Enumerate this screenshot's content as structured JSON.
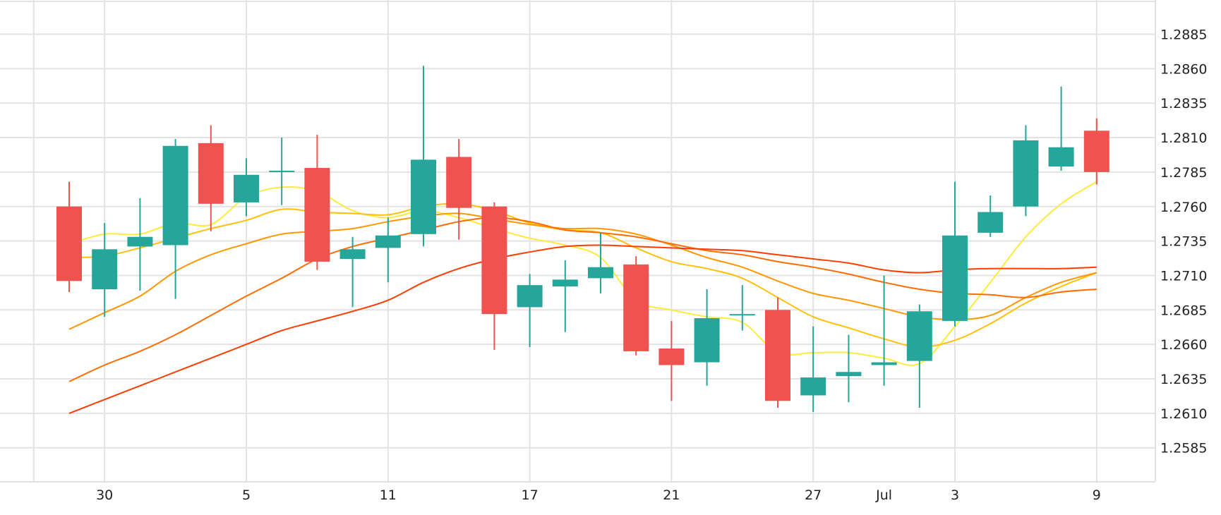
{
  "chart_data": {
    "type": "candlestick",
    "title": "",
    "xlabel": "",
    "ylabel": "",
    "ylim": [
      1.256,
      1.2905
    ],
    "y_ticks": [
      "1.2585",
      "1.2610",
      "1.2635",
      "1.2660",
      "1.2685",
      "1.2710",
      "1.2735",
      "1.2760",
      "1.2785",
      "1.2810",
      "1.2835",
      "1.2860",
      "1.2885"
    ],
    "x_ticks": [
      {
        "label": "30",
        "day": 2
      },
      {
        "label": "5",
        "day": 6
      },
      {
        "label": "11",
        "day": 10
      },
      {
        "label": "17",
        "day": 14
      },
      {
        "label": "21",
        "day": 18
      },
      {
        "label": "27",
        "day": 22
      },
      {
        "label": "Jul",
        "day": 24
      },
      {
        "label": "3",
        "day": 26
      },
      {
        "label": "9",
        "day": 30
      }
    ],
    "x_gridlines": [
      0,
      2,
      6,
      10,
      14,
      18,
      22,
      26,
      30
    ],
    "grid": true,
    "colors": {
      "up": "#26a69a",
      "down": "#ef5350",
      "grid": "#e3e3e3",
      "ma1": "#ffeb3b",
      "ma2": "#ffc107",
      "ma3": "#ff9800",
      "ma4": "#ff6d00",
      "ma5": "#ff3d00"
    },
    "candles": [
      {
        "day": 1,
        "open": 1.276,
        "high": 1.2778,
        "low": 1.2698,
        "close": 1.2706
      },
      {
        "day": 2,
        "open": 1.27,
        "high": 1.2748,
        "low": 1.268,
        "close": 1.2729
      },
      {
        "day": 3,
        "open": 1.2731,
        "high": 1.2766,
        "low": 1.2699,
        "close": 1.2738
      },
      {
        "day": 4,
        "open": 1.2732,
        "high": 1.2809,
        "low": 1.2693,
        "close": 1.2804
      },
      {
        "day": 5,
        "open": 1.2806,
        "high": 1.2819,
        "low": 1.2742,
        "close": 1.2762
      },
      {
        "day": 6,
        "open": 1.2763,
        "high": 1.2795,
        "low": 1.2753,
        "close": 1.2783
      },
      {
        "day": 7,
        "open": 1.2785,
        "high": 1.281,
        "low": 1.2761,
        "close": 1.2786
      },
      {
        "day": 8,
        "open": 1.2788,
        "high": 1.2812,
        "low": 1.2714,
        "close": 1.272
      },
      {
        "day": 9,
        "open": 1.2722,
        "high": 1.2738,
        "low": 1.2687,
        "close": 1.2729
      },
      {
        "day": 10,
        "open": 1.273,
        "high": 1.2752,
        "low": 1.2705,
        "close": 1.2739
      },
      {
        "day": 11,
        "open": 1.274,
        "high": 1.2862,
        "low": 1.2731,
        "close": 1.2794
      },
      {
        "day": 12,
        "open": 1.2796,
        "high": 1.2809,
        "low": 1.2736,
        "close": 1.2759
      },
      {
        "day": 13,
        "open": 1.276,
        "high": 1.2763,
        "low": 1.2656,
        "close": 1.2682
      },
      {
        "day": 14,
        "open": 1.2687,
        "high": 1.2711,
        "low": 1.2658,
        "close": 1.2703
      },
      {
        "day": 15,
        "open": 1.2702,
        "high": 1.2721,
        "low": 1.2669,
        "close": 1.2707
      },
      {
        "day": 16,
        "open": 1.2708,
        "high": 1.2741,
        "low": 1.2697,
        "close": 1.2716
      },
      {
        "day": 17,
        "open": 1.2718,
        "high": 1.2724,
        "low": 1.2652,
        "close": 1.2655
      },
      {
        "day": 18,
        "open": 1.2657,
        "high": 1.2677,
        "low": 1.2619,
        "close": 1.2645
      },
      {
        "day": 19,
        "open": 1.2647,
        "high": 1.27,
        "low": 1.263,
        "close": 1.2679
      },
      {
        "day": 20,
        "open": 1.2681,
        "high": 1.2703,
        "low": 1.267,
        "close": 1.2682
      },
      {
        "day": 21,
        "open": 1.2685,
        "high": 1.2694,
        "low": 1.2614,
        "close": 1.2619
      },
      {
        "day": 22,
        "open": 1.2623,
        "high": 1.2673,
        "low": 1.2611,
        "close": 1.2636
      },
      {
        "day": 23,
        "open": 1.2637,
        "high": 1.2667,
        "low": 1.2618,
        "close": 1.264
      },
      {
        "day": 24,
        "open": 1.2645,
        "high": 1.271,
        "low": 1.263,
        "close": 1.2647
      },
      {
        "day": 25,
        "open": 1.2648,
        "high": 1.2689,
        "low": 1.2614,
        "close": 1.2684
      },
      {
        "day": 26,
        "open": 1.2677,
        "high": 1.2778,
        "low": 1.2673,
        "close": 1.2739
      },
      {
        "day": 27,
        "open": 1.2741,
        "high": 1.2768,
        "low": 1.2738,
        "close": 1.2756
      },
      {
        "day": 28,
        "open": 1.276,
        "high": 1.2819,
        "low": 1.2753,
        "close": 1.2808
      },
      {
        "day": 29,
        "open": 1.2789,
        "high": 1.2847,
        "low": 1.2786,
        "close": 1.2803
      },
      {
        "day": 30,
        "open": 1.2815,
        "high": 1.2824,
        "low": 1.2776,
        "close": 1.2785
      }
    ],
    "moving_averages": [
      {
        "color": "#ffeb3b",
        "points": [
          [
            1,
            1.2733
          ],
          [
            2,
            1.274
          ],
          [
            3,
            1.274
          ],
          [
            4,
            1.2748
          ],
          [
            5,
            1.2747
          ],
          [
            6,
            1.2767
          ],
          [
            7,
            1.2774
          ],
          [
            8,
            1.2771
          ],
          [
            9,
            1.2757
          ],
          [
            10,
            1.2752
          ],
          [
            11,
            1.2757
          ],
          [
            12,
            1.2752
          ],
          [
            13,
            1.2744
          ],
          [
            14,
            1.2737
          ],
          [
            15,
            1.2732
          ],
          [
            16,
            1.2723
          ],
          [
            17,
            1.2692
          ],
          [
            18,
            1.2685
          ],
          [
            19,
            1.268
          ],
          [
            20,
            1.2676
          ],
          [
            21,
            1.2654
          ],
          [
            22,
            1.2654
          ],
          [
            23,
            1.2654
          ],
          [
            24,
            1.265
          ],
          [
            25,
            1.2646
          ],
          [
            26,
            1.2673
          ],
          [
            27,
            1.2705
          ],
          [
            28,
            1.2738
          ],
          [
            29,
            1.2762
          ],
          [
            30,
            1.2778
          ]
        ]
      },
      {
        "color": "#ffc107",
        "points": [
          [
            1,
            1.2723
          ],
          [
            2,
            1.2724
          ],
          [
            3,
            1.273
          ],
          [
            4,
            1.2737
          ],
          [
            5,
            1.2744
          ],
          [
            6,
            1.275
          ],
          [
            7,
            1.2758
          ],
          [
            8,
            1.2756
          ],
          [
            9,
            1.2755
          ],
          [
            10,
            1.2754
          ],
          [
            11,
            1.276
          ],
          [
            12,
            1.2762
          ],
          [
            13,
            1.2757
          ],
          [
            14,
            1.2748
          ],
          [
            15,
            1.2743
          ],
          [
            16,
            1.2741
          ],
          [
            17,
            1.273
          ],
          [
            18,
            1.272
          ],
          [
            19,
            1.2715
          ],
          [
            20,
            1.2708
          ],
          [
            21,
            1.2694
          ],
          [
            22,
            1.268
          ],
          [
            23,
            1.2672
          ],
          [
            24,
            1.2664
          ],
          [
            25,
            1.2658
          ],
          [
            26,
            1.2663
          ],
          [
            27,
            1.2675
          ],
          [
            28,
            1.269
          ],
          [
            29,
            1.2702
          ],
          [
            30,
            1.2712
          ]
        ]
      },
      {
        "color": "#ff9800",
        "points": [
          [
            1,
            1.2671
          ],
          [
            2,
            1.2683
          ],
          [
            3,
            1.2695
          ],
          [
            4,
            1.2713
          ],
          [
            5,
            1.2725
          ],
          [
            6,
            1.2733
          ],
          [
            7,
            1.274
          ],
          [
            8,
            1.2742
          ],
          [
            9,
            1.2744
          ],
          [
            10,
            1.2749
          ],
          [
            11,
            1.2753
          ],
          [
            12,
            1.2755
          ],
          [
            13,
            1.2751
          ],
          [
            14,
            1.2747
          ],
          [
            15,
            1.2744
          ],
          [
            16,
            1.2744
          ],
          [
            17,
            1.274
          ],
          [
            18,
            1.2732
          ],
          [
            19,
            1.2723
          ],
          [
            20,
            1.2716
          ],
          [
            21,
            1.2706
          ],
          [
            22,
            1.2697
          ],
          [
            23,
            1.2692
          ],
          [
            24,
            1.2686
          ],
          [
            25,
            1.268
          ],
          [
            26,
            1.2678
          ],
          [
            27,
            1.2681
          ],
          [
            28,
            1.2694
          ],
          [
            29,
            1.2705
          ],
          [
            30,
            1.2712
          ]
        ]
      },
      {
        "color": "#ff6d00",
        "points": [
          [
            1,
            1.2633
          ],
          [
            2,
            1.2645
          ],
          [
            3,
            1.2655
          ],
          [
            4,
            1.2667
          ],
          [
            5,
            1.2681
          ],
          [
            6,
            1.2695
          ],
          [
            7,
            1.2708
          ],
          [
            8,
            1.2722
          ],
          [
            9,
            1.2731
          ],
          [
            10,
            1.2737
          ],
          [
            11,
            1.2743
          ],
          [
            12,
            1.2749
          ],
          [
            13,
            1.2752
          ],
          [
            14,
            1.2749
          ],
          [
            15,
            1.2743
          ],
          [
            16,
            1.2741
          ],
          [
            17,
            1.2738
          ],
          [
            18,
            1.2733
          ],
          [
            19,
            1.2728
          ],
          [
            20,
            1.2725
          ],
          [
            21,
            1.272
          ],
          [
            22,
            1.2716
          ],
          [
            23,
            1.2711
          ],
          [
            24,
            1.2705
          ],
          [
            25,
            1.27
          ],
          [
            26,
            1.2697
          ],
          [
            27,
            1.2696
          ],
          [
            28,
            1.2694
          ],
          [
            29,
            1.2698
          ],
          [
            30,
            1.27
          ]
        ]
      },
      {
        "color": "#ff3d00",
        "points": [
          [
            1,
            1.261
          ],
          [
            2,
            1.262
          ],
          [
            3,
            1.263
          ],
          [
            4,
            1.264
          ],
          [
            5,
            1.265
          ],
          [
            6,
            1.266
          ],
          [
            7,
            1.267
          ],
          [
            8,
            1.2677
          ],
          [
            9,
            1.2684
          ],
          [
            10,
            1.2692
          ],
          [
            11,
            1.2705
          ],
          [
            12,
            1.2715
          ],
          [
            13,
            1.2722
          ],
          [
            14,
            1.2727
          ],
          [
            15,
            1.2731
          ],
          [
            16,
            1.2732
          ],
          [
            17,
            1.2731
          ],
          [
            18,
            1.273
          ],
          [
            19,
            1.2729
          ],
          [
            20,
            1.2728
          ],
          [
            21,
            1.2725
          ],
          [
            22,
            1.2722
          ],
          [
            23,
            1.2719
          ],
          [
            24,
            1.2714
          ],
          [
            25,
            1.2712
          ],
          [
            26,
            1.2714
          ],
          [
            27,
            1.2715
          ],
          [
            28,
            1.2715
          ],
          [
            29,
            1.2715
          ],
          [
            30,
            1.2716
          ]
        ]
      }
    ]
  }
}
